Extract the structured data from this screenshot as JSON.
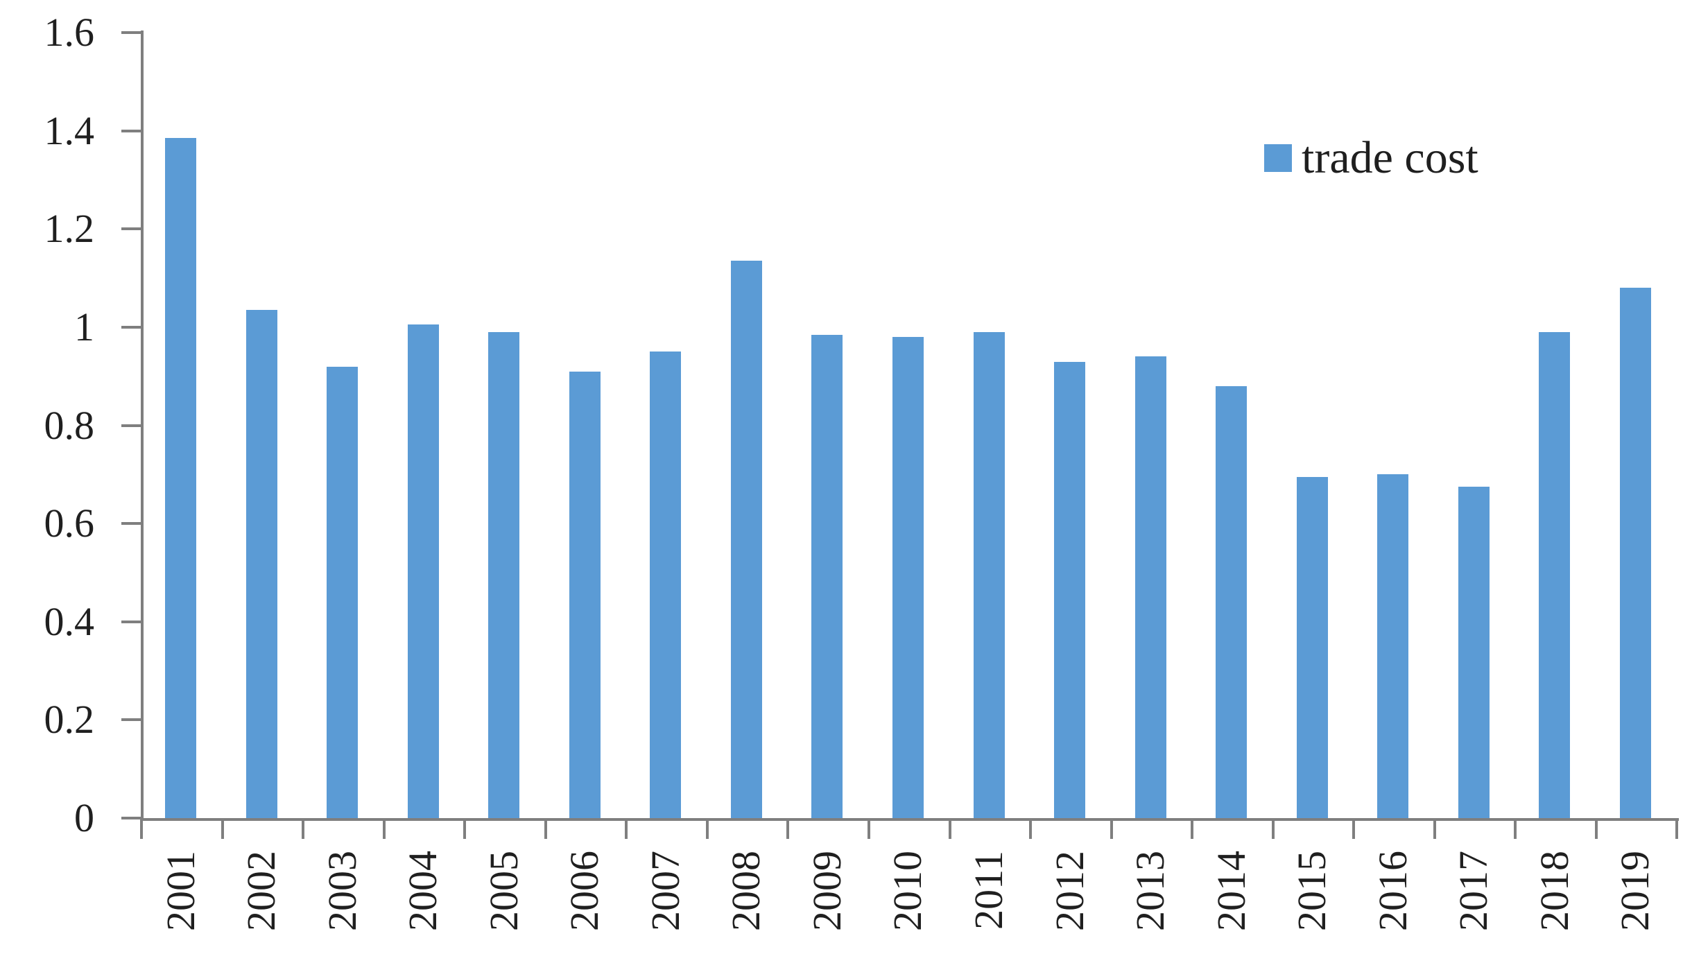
{
  "chart_data": {
    "type": "bar",
    "title": "",
    "legend": "trade cost",
    "legend_position": "top-right",
    "categories": [
      "2001",
      "2002",
      "2003",
      "2004",
      "2005",
      "2006",
      "2007",
      "2008",
      "2009",
      "2010",
      "2011",
      "2012",
      "2013",
      "2014",
      "2015",
      "2016",
      "2017",
      "2018",
      "2019"
    ],
    "series": [
      {
        "name": "trade cost",
        "values": [
          1.385,
          1.035,
          0.92,
          1.005,
          0.99,
          0.91,
          0.95,
          1.135,
          0.985,
          0.98,
          0.99,
          0.93,
          0.94,
          0.88,
          0.695,
          0.7,
          0.675,
          0.99,
          1.08
        ]
      }
    ],
    "ylim": [
      0,
      1.6
    ],
    "ytick_step": 0.2,
    "ytick_labels": [
      "0",
      "0.2",
      "0.4",
      "0.6",
      "0.8",
      "1",
      "1.2",
      "1.4",
      "1.6"
    ],
    "grid": false,
    "colors": {
      "bar": "#5b9bd5",
      "axis": "#7f7f7f",
      "text": "#1f1f1f",
      "background": "#ffffff"
    }
  }
}
